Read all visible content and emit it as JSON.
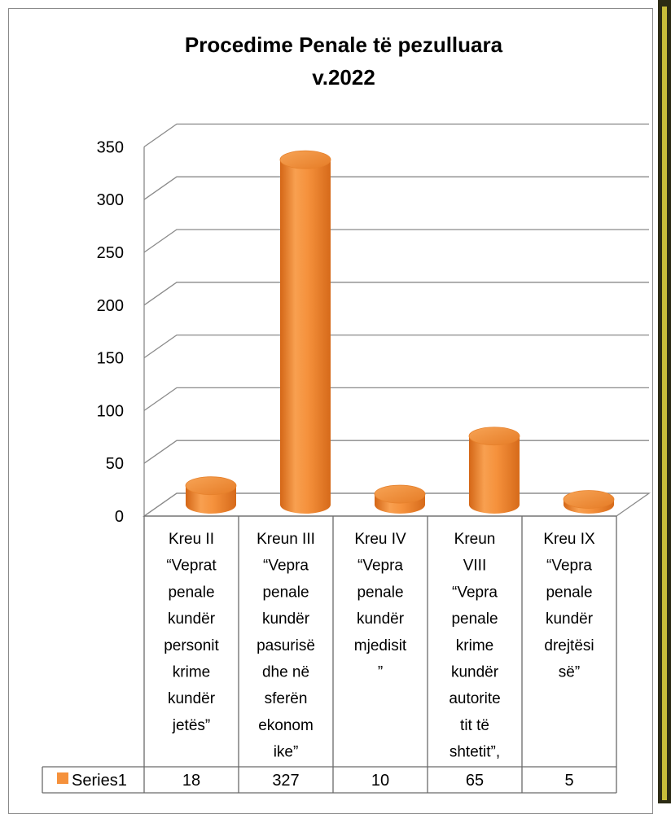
{
  "chart_data": {
    "type": "bar",
    "title": [
      "Procedime Penale të pezulluara",
      "v.2022"
    ],
    "categories": [
      "Kreu II “Veprat penale kundër personit krime kundër jetës”",
      "Kreun III “Vepra penale kundër pasurisë dhe në sferën ekonomike”",
      "Kreu IV “Vepra penale kundër mjedisit”",
      "Kreun VIII “Vepra penale krime kundër autoritetit të shtetit”,",
      "Kreu IX “Vepra penale kundër drejtësisë”"
    ],
    "category_lines": [
      [
        "Kreu II",
        "“Veprat",
        "penale",
        "kundër",
        "personit",
        "krime",
        "kundër",
        "jetës”"
      ],
      [
        "Kreun III",
        "“Vepra",
        "penale",
        "kundër",
        "pasurisë",
        "dhe në",
        "sferën",
        "ekonom",
        "ike”"
      ],
      [
        "Kreu IV",
        "“Vepra",
        "penale",
        "kundër",
        "mjedisit",
        "”"
      ],
      [
        "Kreun",
        "VIII",
        "“Vepra",
        "penale",
        "krime",
        "kundër",
        "autorite",
        "tit të",
        "shtetit”,"
      ],
      [
        "Kreu IX",
        "“Vepra",
        "penale",
        "kundër",
        "drejtësi",
        "së”"
      ]
    ],
    "series": [
      {
        "name": "Series1",
        "values": [
          18,
          327,
          10,
          65,
          5
        ]
      }
    ],
    "y_ticks": [
      "0",
      "50",
      "100",
      "150",
      "200",
      "250",
      "300",
      "350"
    ],
    "ylim": [
      0,
      350
    ],
    "xlabel": "",
    "ylabel": "",
    "grid": true,
    "legend": "data-table",
    "colors": {
      "bar": "#f5913c",
      "bar_dark": "#d96a17",
      "bar_top": "#f9ad66",
      "grid": "#8a8a8a",
      "legend_key": "#f5913c"
    }
  }
}
